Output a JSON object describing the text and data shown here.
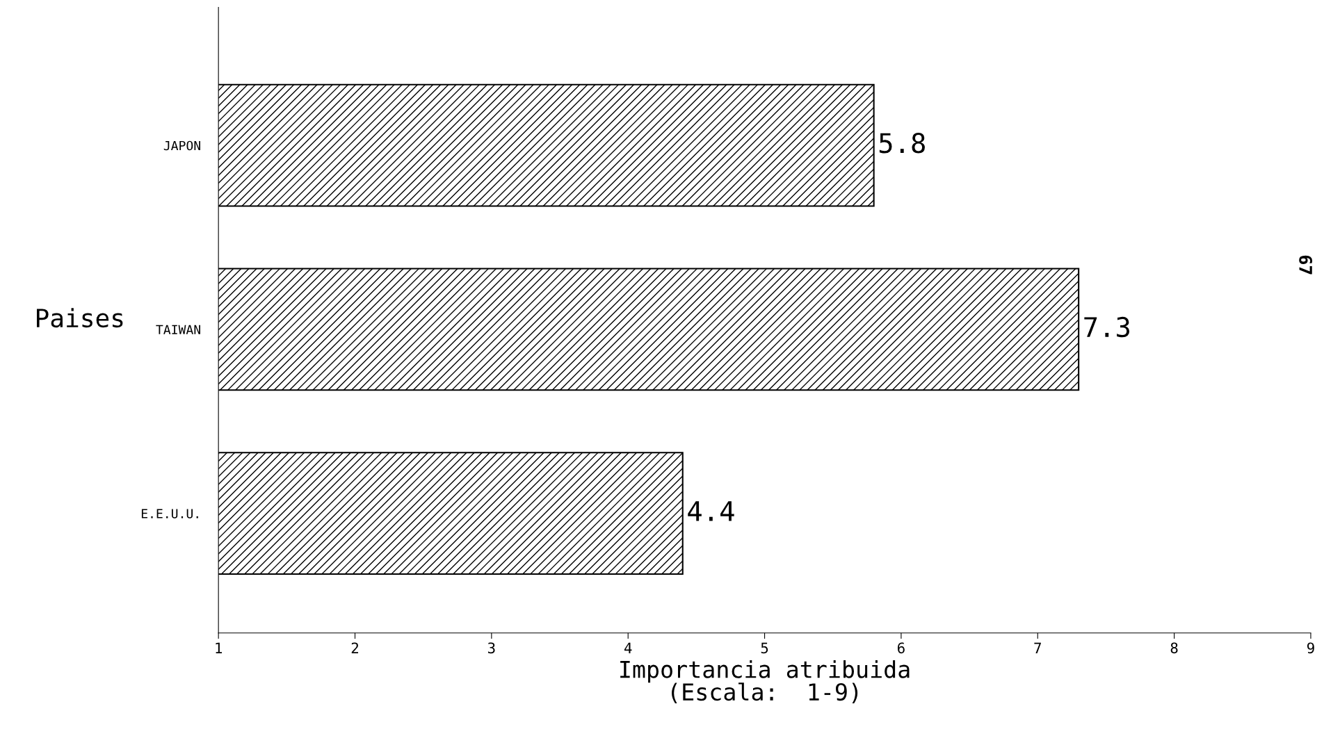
{
  "chart_data": {
    "type": "bar",
    "orientation": "horizontal",
    "categories": [
      "JAPON",
      "TAIWAN",
      "E.E.U.U."
    ],
    "values": [
      5.8,
      7.3,
      4.4
    ],
    "color": "#000000",
    "xlim": [
      1,
      9
    ],
    "xticks": [
      1,
      2,
      3,
      4,
      5,
      6,
      7,
      8,
      9
    ],
    "xlabel": "Importancia atribuida\n(Escala:  1-9)",
    "ylabel": "Paises",
    "data_labels": true,
    "grid": false,
    "annotations": [
      "67"
    ]
  }
}
